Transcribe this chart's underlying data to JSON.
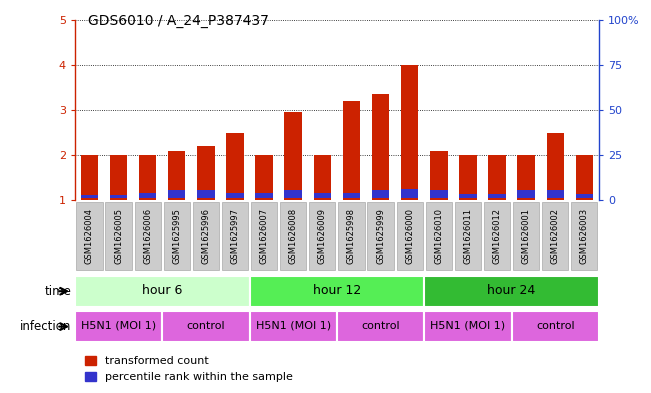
{
  "title": "GDS6010 / A_24_P387437",
  "samples": [
    "GSM1626004",
    "GSM1626005",
    "GSM1626006",
    "GSM1625995",
    "GSM1625996",
    "GSM1625997",
    "GSM1626007",
    "GSM1626008",
    "GSM1626009",
    "GSM1625998",
    "GSM1625999",
    "GSM1626000",
    "GSM1626010",
    "GSM1626011",
    "GSM1626012",
    "GSM1626001",
    "GSM1626002",
    "GSM1626003"
  ],
  "red_values": [
    2.0,
    2.0,
    2.0,
    2.1,
    2.2,
    2.5,
    2.0,
    2.95,
    2.0,
    3.2,
    3.35,
    4.0,
    2.1,
    2.0,
    2.0,
    2.0,
    2.5,
    2.0
  ],
  "blue_values": [
    0.07,
    0.07,
    0.12,
    0.18,
    0.18,
    0.12,
    0.12,
    0.18,
    0.12,
    0.12,
    0.18,
    0.2,
    0.18,
    0.1,
    0.1,
    0.18,
    0.18,
    0.1
  ],
  "ylim": [
    1,
    5
  ],
  "yticks_left": [
    1,
    2,
    3,
    4,
    5
  ],
  "yticks_right": [
    0,
    25,
    50,
    75,
    100
  ],
  "bar_color": "#cc2200",
  "blue_color": "#3333cc",
  "time_groups": [
    {
      "label": "hour 6",
      "start": 0,
      "end": 6,
      "color": "#ccffcc"
    },
    {
      "label": "hour 12",
      "start": 6,
      "end": 12,
      "color": "#55ee55"
    },
    {
      "label": "hour 24",
      "start": 12,
      "end": 18,
      "color": "#33bb33"
    }
  ],
  "infection_groups": [
    {
      "label": "H5N1 (MOI 1)",
      "start": 0,
      "end": 3,
      "color": "#dd66dd"
    },
    {
      "label": "control",
      "start": 3,
      "end": 6,
      "color": "#dd66dd"
    },
    {
      "label": "H5N1 (MOI 1)",
      "start": 6,
      "end": 9,
      "color": "#dd66dd"
    },
    {
      "label": "control",
      "start": 9,
      "end": 12,
      "color": "#dd66dd"
    },
    {
      "label": "H5N1 (MOI 1)",
      "start": 12,
      "end": 15,
      "color": "#dd66dd"
    },
    {
      "label": "control",
      "start": 15,
      "end": 18,
      "color": "#dd66dd"
    }
  ],
  "background_color": "#ffffff",
  "left_axis_color": "#cc2200",
  "right_axis_color": "#2244cc",
  "sample_box_color": "#cccccc",
  "sample_box_edge": "#aaaaaa"
}
